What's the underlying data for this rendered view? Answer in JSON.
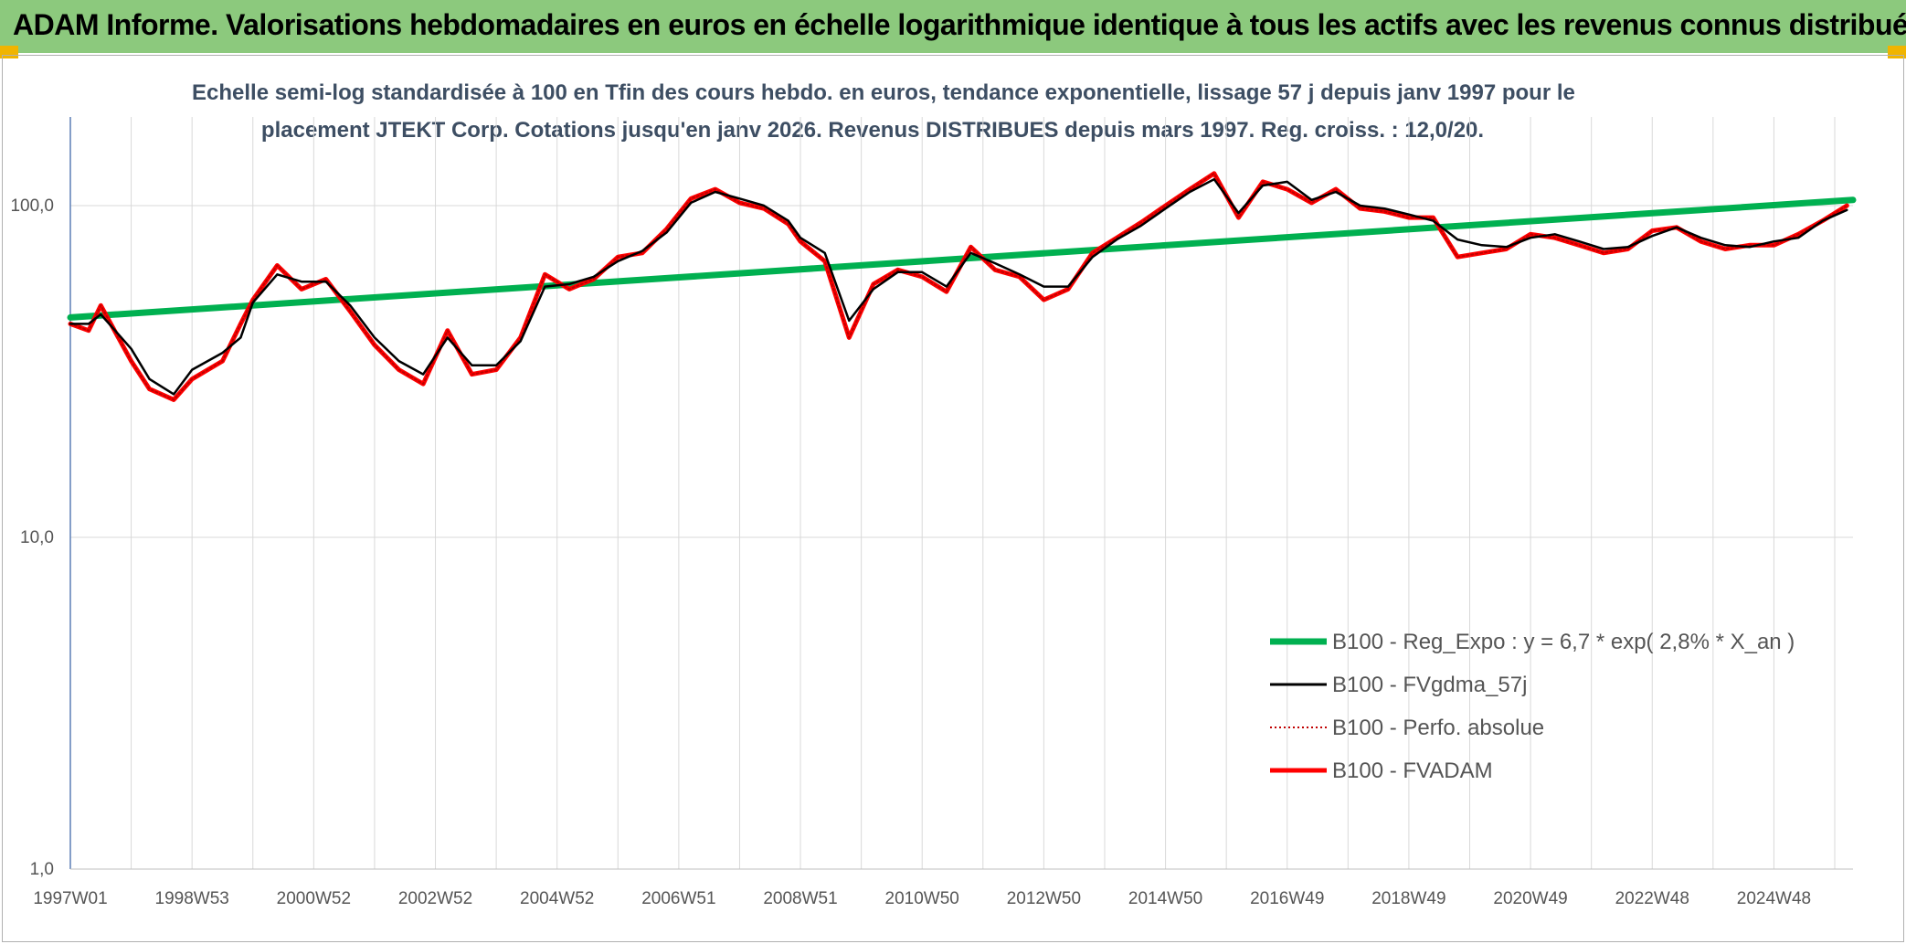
{
  "header": {
    "title": "ADAM Informe. Valorisations hebdomadaires en euros en échelle logarithmique identique à tous les actifs avec les revenus connus distribués"
  },
  "chart_data": {
    "type": "line",
    "title_line1": "Echelle semi-log standardisée à 100 en Tfin des cours hebdo. en euros, tendance exponentielle, lissage 57 j depuis janv 1997 pour le",
    "title_line2": "placement JTEKT Corp. Cotations jusqu'en janv 2026. Revenus DISTRIBUES depuis mars 1997. Reg. croiss. : 12,0/20.",
    "y_scale": "log",
    "ylim": [
      1,
      185
    ],
    "y_ticks": [
      {
        "value": 1,
        "label": "1,0"
      },
      {
        "value": 10,
        "label": "10,0"
      },
      {
        "value": 100,
        "label": "100,0"
      }
    ],
    "xlim": [
      1997.0,
      2026.3
    ],
    "x_ticks": [
      {
        "value": 1997.0,
        "label": "1997W01"
      },
      {
        "value": 1999.0,
        "label": "1998W53"
      },
      {
        "value": 2001.0,
        "label": "2000W52"
      },
      {
        "value": 2003.0,
        "label": "2002W52"
      },
      {
        "value": 2005.0,
        "label": "2004W52"
      },
      {
        "value": 2007.0,
        "label": "2006W51"
      },
      {
        "value": 2009.0,
        "label": "2008W51"
      },
      {
        "value": 2011.0,
        "label": "2010W50"
      },
      {
        "value": 2013.0,
        "label": "2012W50"
      },
      {
        "value": 2015.0,
        "label": "2014W50"
      },
      {
        "value": 2017.0,
        "label": "2016W49"
      },
      {
        "value": 2019.0,
        "label": "2018W49"
      },
      {
        "value": 2021.0,
        "label": "2020W49"
      },
      {
        "value": 2023.0,
        "label": "2022W48"
      },
      {
        "value": 2025.0,
        "label": "2024W48"
      }
    ],
    "grid": true,
    "legend_position": "bottom-right",
    "series": [
      {
        "name": "B100 - Reg_Expo : y = 6,7 * exp( 2,8% *  X_an )",
        "color": "#00b050",
        "style": "solid",
        "x": [
          1997.0,
          2026.3
        ],
        "y": [
          46.0,
          104.0
        ]
      },
      {
        "name": "B100 - FVgdma_57j",
        "color": "#000000",
        "style": "solid",
        "x": [
          1997.0,
          1997.3,
          1997.5,
          1998.0,
          1998.3,
          1998.7,
          1999.0,
          1999.5,
          1999.8,
          2000.0,
          2000.4,
          2000.8,
          2001.2,
          2001.6,
          2002.0,
          2002.4,
          2002.8,
          2003.2,
          2003.6,
          2004.0,
          2004.4,
          2004.8,
          2005.2,
          2005.6,
          2006.0,
          2006.4,
          2006.8,
          2007.2,
          2007.6,
          2008.0,
          2008.4,
          2008.8,
          2009.0,
          2009.4,
          2009.8,
          2010.2,
          2010.6,
          2011.0,
          2011.4,
          2011.8,
          2012.2,
          2012.6,
          2013.0,
          2013.4,
          2013.8,
          2014.2,
          2014.6,
          2015.0,
          2015.4,
          2015.8,
          2016.2,
          2016.6,
          2017.0,
          2017.4,
          2017.8,
          2018.2,
          2018.6,
          2019.0,
          2019.4,
          2019.8,
          2020.2,
          2020.6,
          2021.0,
          2021.4,
          2021.8,
          2022.2,
          2022.6,
          2023.0,
          2023.4,
          2023.8,
          2024.2,
          2024.6,
          2025.0,
          2025.4,
          2025.8,
          2026.2
        ],
        "y": [
          44,
          44,
          47,
          37,
          30,
          27,
          32,
          36,
          40,
          51,
          62,
          59,
          59,
          50,
          40,
          34,
          31,
          40,
          33,
          33,
          39,
          57,
          58,
          61,
          68,
          73,
          83,
          102,
          110,
          105,
          100,
          90,
          80,
          72,
          45,
          56,
          63,
          63,
          57,
          72,
          67,
          62,
          57,
          57,
          70,
          79,
          87,
          98,
          110,
          120,
          95,
          115,
          118,
          104,
          110,
          100,
          98,
          94,
          90,
          79,
          76,
          75,
          80,
          82,
          78,
          74,
          75,
          81,
          86,
          80,
          76,
          75,
          78,
          80,
          90,
          97
        ]
      },
      {
        "name": "B100 - Perfo. absolue",
        "color": "#c00000",
        "style": "dotted",
        "x": [
          1997.0,
          1997.3,
          1997.5,
          1998.0,
          1998.3,
          1998.7,
          1999.0,
          1999.5,
          1999.8,
          2000.0,
          2000.4,
          2000.8,
          2001.2,
          2001.6,
          2002.0,
          2002.4,
          2002.8,
          2003.2,
          2003.6,
          2004.0,
          2004.4,
          2004.8,
          2005.2,
          2005.6,
          2006.0,
          2006.4,
          2006.8,
          2007.2,
          2007.6,
          2008.0,
          2008.4,
          2008.8,
          2009.0,
          2009.4,
          2009.8,
          2010.2,
          2010.6,
          2011.0,
          2011.4,
          2011.8,
          2012.2,
          2012.6,
          2013.0,
          2013.4,
          2013.8,
          2014.2,
          2014.6,
          2015.0,
          2015.4,
          2015.8,
          2016.2,
          2016.6,
          2017.0,
          2017.4,
          2017.8,
          2018.2,
          2018.6,
          2019.0,
          2019.4,
          2019.8,
          2020.2,
          2020.6,
          2021.0,
          2021.4,
          2021.8,
          2022.2,
          2022.6,
          2023.0,
          2023.4,
          2023.8,
          2024.2,
          2024.6,
          2025.0,
          2025.4,
          2025.8,
          2026.2
        ],
        "y": [
          44,
          42,
          50,
          34,
          28,
          26,
          30,
          34,
          44,
          52,
          66,
          56,
          60,
          48,
          38,
          32,
          29,
          42,
          31,
          32,
          40,
          62,
          56,
          60,
          70,
          72,
          85,
          105,
          112,
          102,
          98,
          88,
          78,
          68,
          40,
          58,
          64,
          61,
          55,
          75,
          64,
          61,
          52,
          56,
          72,
          80,
          89,
          100,
          112,
          125,
          92,
          118,
          112,
          102,
          112,
          98,
          96,
          92,
          92,
          70,
          72,
          74,
          82,
          80,
          76,
          72,
          74,
          84,
          86,
          78,
          74,
          76,
          76,
          82,
          90,
          100
        ]
      },
      {
        "name": "B100 - FVADAM",
        "color": "#ff0000",
        "style": "solid",
        "x": [
          1997.0,
          1997.3,
          1997.5,
          1998.0,
          1998.3,
          1998.7,
          1999.0,
          1999.5,
          1999.8,
          2000.0,
          2000.4,
          2000.8,
          2001.2,
          2001.6,
          2002.0,
          2002.4,
          2002.8,
          2003.2,
          2003.6,
          2004.0,
          2004.4,
          2004.8,
          2005.2,
          2005.6,
          2006.0,
          2006.4,
          2006.8,
          2007.2,
          2007.6,
          2008.0,
          2008.4,
          2008.8,
          2009.0,
          2009.4,
          2009.8,
          2010.2,
          2010.6,
          2011.0,
          2011.4,
          2011.8,
          2012.2,
          2012.6,
          2013.0,
          2013.4,
          2013.8,
          2014.2,
          2014.6,
          2015.0,
          2015.4,
          2015.8,
          2016.2,
          2016.6,
          2017.0,
          2017.4,
          2017.8,
          2018.2,
          2018.6,
          2019.0,
          2019.4,
          2019.8,
          2020.2,
          2020.6,
          2021.0,
          2021.4,
          2021.8,
          2022.2,
          2022.6,
          2023.0,
          2023.4,
          2023.8,
          2024.2,
          2024.6,
          2025.0,
          2025.4,
          2025.8,
          2026.2
        ],
        "y": [
          44,
          42,
          50,
          34,
          28,
          26,
          30,
          34,
          44,
          52,
          66,
          56,
          60,
          48,
          38,
          32,
          29,
          42,
          31,
          32,
          40,
          62,
          56,
          60,
          70,
          72,
          85,
          105,
          112,
          102,
          98,
          88,
          78,
          68,
          40,
          58,
          64,
          61,
          55,
          75,
          64,
          61,
          52,
          56,
          72,
          80,
          89,
          100,
          112,
          125,
          92,
          118,
          112,
          102,
          112,
          98,
          96,
          92,
          92,
          70,
          72,
          74,
          82,
          80,
          76,
          72,
          74,
          84,
          86,
          78,
          74,
          76,
          76,
          82,
          90,
          100
        ]
      }
    ]
  }
}
